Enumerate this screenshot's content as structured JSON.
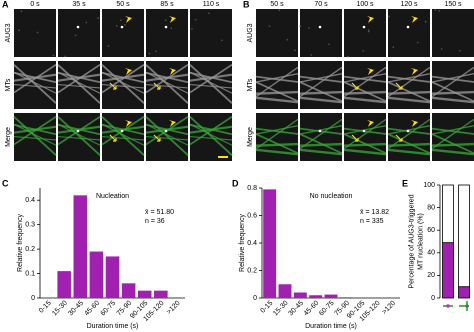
{
  "figure": {
    "panels": [
      {
        "letter": "A",
        "times": [
          "0 s",
          "35 s",
          "50 s",
          "85 s",
          "110 s"
        ],
        "rows": [
          "AUG3",
          "MTs",
          "Merge"
        ]
      },
      {
        "letter": "B",
        "times": [
          "50 s",
          "70 s",
          "100 s",
          "120 s",
          "150 s"
        ],
        "rows": [
          "AUG3",
          "MTs",
          "Merge"
        ]
      }
    ]
  },
  "chart_data": [
    {
      "type": "bar",
      "letter": "C",
      "title": "Nucleation",
      "annotations": [
        "x̄ = 51.80",
        "n = 36"
      ],
      "categories": [
        "0-15",
        "15-30",
        "30-45",
        "45-60",
        "60-75",
        "75-90",
        "90-105",
        "105-120",
        ">120"
      ],
      "values": [
        0,
        0.11,
        0.42,
        0.19,
        0.17,
        0.06,
        0.03,
        0.03,
        0
      ],
      "color": "#a020b0",
      "ylim": [
        0,
        0.45
      ],
      "yticks": [
        0,
        0.1,
        0.2,
        0.3,
        0.4
      ],
      "xlabel": "Duration time (s)",
      "ylabel": [
        "Relative frequency"
      ]
    },
    {
      "type": "bar",
      "letter": "D",
      "title": "No nucleation",
      "annotations": [
        "x̄ = 13.82",
        "n = 335"
      ],
      "categories": [
        "0-15",
        "15-30",
        "30-45",
        "45-60",
        "60-75",
        "75-90",
        "90-105",
        "105-120",
        ">120"
      ],
      "values": [
        0.79,
        0.1,
        0.04,
        0.02,
        0.025,
        0.005,
        0,
        0,
        0
      ],
      "color": "#a020b0",
      "ylim": [
        0,
        0.8
      ],
      "yticks": [
        0,
        0.2,
        0.4,
        0.6,
        0.8
      ],
      "xlabel": "Duration time (s)",
      "ylabel": [
        "Relative frequency"
      ]
    },
    {
      "type": "stacked_bar",
      "letter": "E",
      "categories": [
        null,
        null
      ],
      "series": [
        {
          "color": "#a020b0",
          "values": [
            49,
            10
          ]
        },
        {
          "color": "#ffffff",
          "values": [
            51,
            90
          ]
        }
      ],
      "ylim": [
        0,
        100
      ],
      "yticks": [
        0,
        20,
        40,
        60,
        80,
        100
      ],
      "ylabel": [
        "Percentage of AUG3-triggered",
        "MT nucleation (%)"
      ]
    }
  ]
}
